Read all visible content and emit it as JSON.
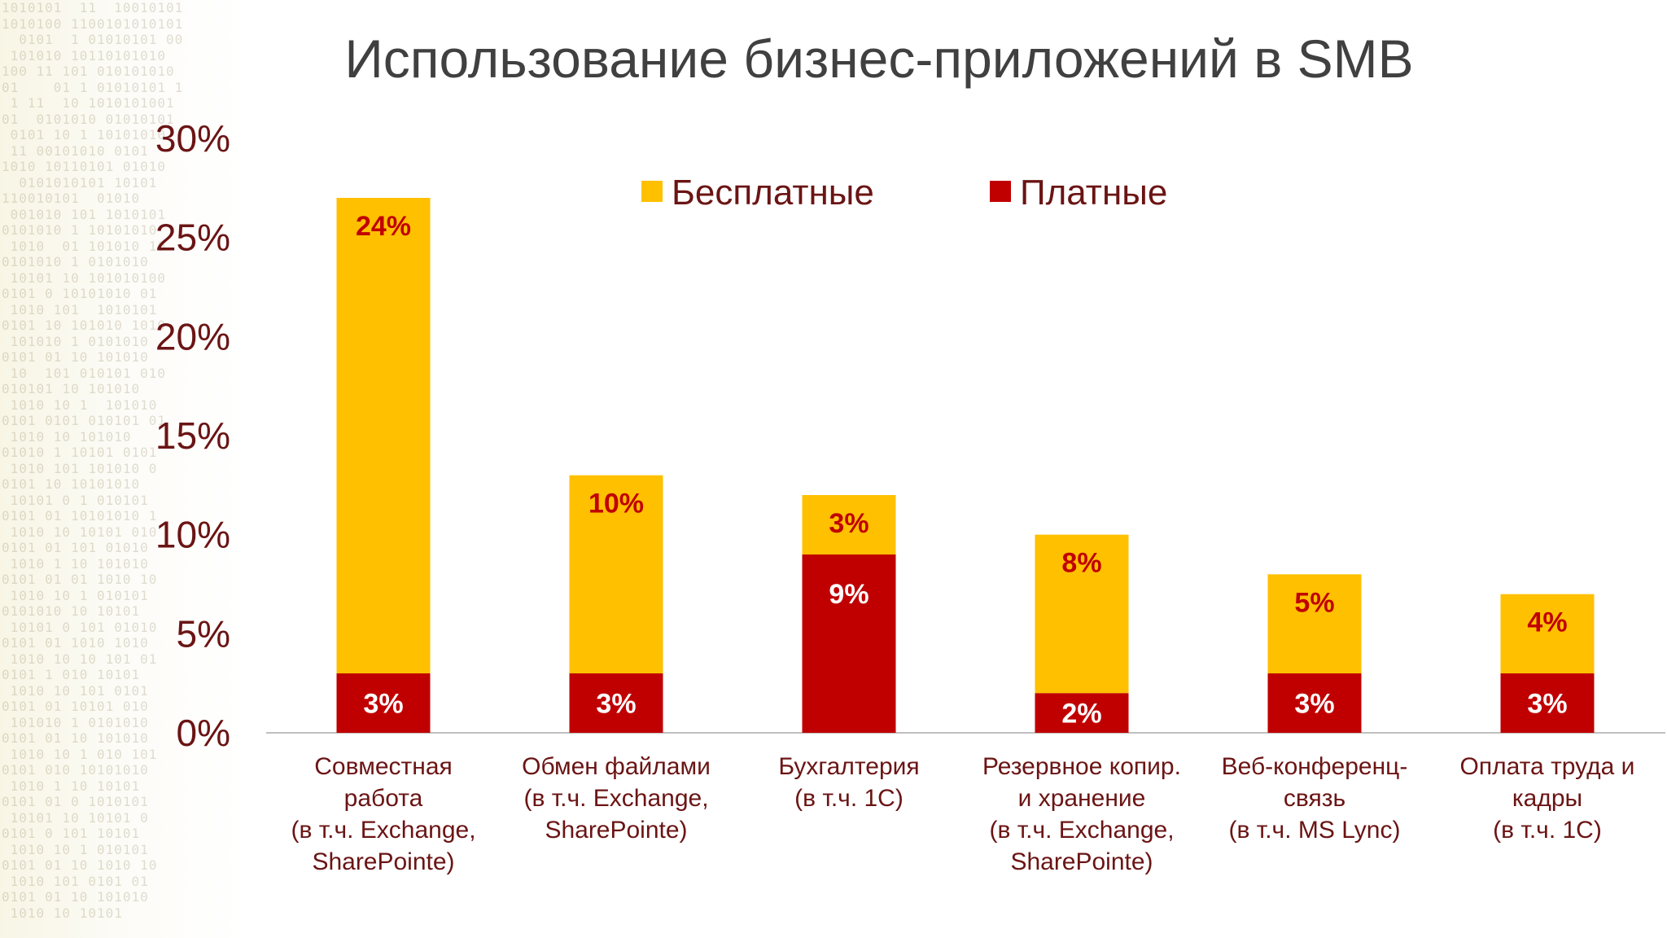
{
  "colors": {
    "free": "#FFC000",
    "paid": "#C00000",
    "free_label": "#C00000",
    "paid_label": "#FFFFFF",
    "axis_text": "#6B1414",
    "title_text": "#404040",
    "axis_line": "#BFBFBF"
  },
  "chart_data": {
    "type": "bar",
    "stacked": true,
    "title": "Использование бизнес-приложений в SMB",
    "xlabel": "",
    "ylabel": "",
    "ylim": [
      0,
      30
    ],
    "grid": false,
    "legend_position": "top-center",
    "y_ticks": [
      "0%",
      "5%",
      "10%",
      "15%",
      "20%",
      "25%",
      "30%"
    ],
    "categories": [
      [
        "Совместная",
        "работа",
        "(в т.ч. Exchange,",
        "SharePointe)"
      ],
      [
        "Обмен файлами",
        "(в т.ч. Exchange,",
        "SharePointe)"
      ],
      [
        "Бухгалтерия",
        "(в т.ч. 1С)"
      ],
      [
        "Резервное копир.",
        "и хранение",
        "(в т.ч. Exchange,",
        "SharePointe)"
      ],
      [
        "Веб-конференц-",
        "связь",
        "(в т.ч. MS Lync)"
      ],
      [
        "Оплата труда и",
        "кадры",
        "(в т.ч. 1С)"
      ]
    ],
    "series": [
      {
        "name": "Платные",
        "key": "paid",
        "values": [
          3,
          3,
          9,
          2,
          3,
          3
        ],
        "labels": [
          "3%",
          "3%",
          "9%",
          "2%",
          "3%",
          "3%"
        ]
      },
      {
        "name": "Бесплатные",
        "key": "free",
        "values": [
          24,
          10,
          3,
          8,
          5,
          4
        ],
        "labels": [
          "24%",
          "10%",
          "3%",
          "8%",
          "5%",
          "4%"
        ]
      }
    ],
    "legend": [
      "Бесплатные",
      "Платные"
    ]
  }
}
